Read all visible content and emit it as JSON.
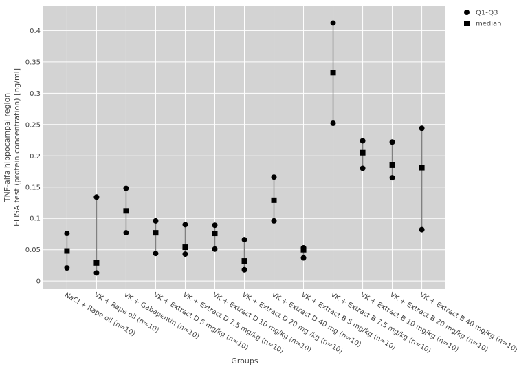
{
  "chart_data": {
    "type": "range-dot",
    "x_label": "Groups",
    "y_label": [
      "TNF-alfa hippocampal region",
      "ELISA test (protein concentration) [ng/ml]"
    ],
    "categories": [
      "NaCl + Rape oil (n=10)",
      "VK + Rape oil (n=10)",
      "VK + Gabapentin (n=10)",
      "VK + Extract D 5 mg/kg (n=10)",
      "VK + Extract D 7.5 mg/kg (n=10)",
      "VK + Extract D 10 mg/kg (n=10)",
      "VK + Extract D 20 mg /kg (n=10)",
      "VK + Extract D 40 mg (n=10)",
      "VK + Extract B 5 mg/kg (n=10)",
      "VK + Extract B 7.5 mg/kg (n=10)",
      "VK + Extract B 10 mg/kg (n=10)",
      "VK + Extract B 20 mg/kg (n=10)",
      "VK + Extract B 40 mg/kg (n=10)"
    ],
    "series": [
      {
        "name": "Q1-Q3",
        "color": "#000000",
        "marker": "circle",
        "low": [
          0.021,
          0.013,
          0.077,
          0.044,
          0.043,
          0.051,
          0.018,
          0.096,
          0.037,
          0.252,
          0.18,
          0.165,
          0.082
        ],
        "high": [
          0.076,
          0.134,
          0.148,
          0.096,
          0.09,
          0.089,
          0.066,
          0.166,
          0.053,
          0.412,
          0.224,
          0.222,
          0.244
        ]
      },
      {
        "name": "median",
        "color": "#000000",
        "marker": "square",
        "values": [
          0.048,
          0.029,
          0.112,
          0.077,
          0.054,
          0.076,
          0.032,
          0.129,
          0.05,
          0.333,
          0.205,
          0.185,
          0.181
        ]
      }
    ],
    "ylim": [
      -0.013,
      0.44
    ],
    "yticks": [
      0,
      0.05,
      0.1,
      0.15,
      0.2,
      0.25,
      0.3,
      0.35,
      0.4
    ],
    "grid": true,
    "legend": "top-right"
  }
}
